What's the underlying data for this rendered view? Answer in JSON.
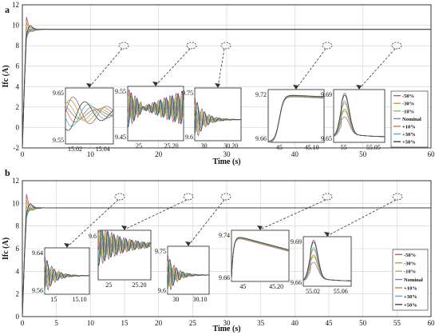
{
  "colors": {
    "-50%": "#a85a8c",
    "-30%": "#c8a030",
    "-10%": "#8fbf5a",
    "Nominal": "#8a7fb8",
    "+10%": "#d07a3a",
    "+30%": "#4ab0d0",
    "+50%": "#404040",
    "grid": "#d0d0d0",
    "dashed": "#333333"
  },
  "chart_data": [
    {
      "panel": "a",
      "type": "line",
      "xlabel": "Time (s)",
      "ylabel": "Ifc (A)",
      "xlim": [
        0,
        60
      ],
      "ylim": [
        -2,
        12
      ],
      "xticks": [
        0,
        10,
        20,
        30,
        40,
        50,
        60
      ],
      "yticks": [
        -2,
        0,
        2,
        4,
        6,
        8,
        10,
        12
      ],
      "grid": true,
      "steady_state": 9.6,
      "legend": [
        "-50%",
        "-30%",
        "-10%",
        "Nominal",
        "+10%",
        "+30%",
        "+50%"
      ],
      "legend_position": "right",
      "zoom_markers": [
        15,
        25,
        30,
        45,
        55
      ],
      "insets": [
        {
          "xticks": [
            "15.02",
            "15.04"
          ],
          "yticks": [
            "9.65",
            "9.55"
          ],
          "xr": [
            15.0,
            15.05
          ],
          "yr": [
            9.55,
            9.67
          ],
          "shape": "osc_slow"
        },
        {
          "xticks": [
            "25",
            "25.20"
          ],
          "yticks": [
            "9.55",
            "9.45"
          ],
          "xr": [
            25.0,
            25.25
          ],
          "yr": [
            9.45,
            9.58
          ],
          "shape": "osc_grow"
        },
        {
          "xticks": [
            "30",
            "30.20"
          ],
          "yticks": [
            "9.75",
            "9.6"
          ],
          "xr": [
            30.0,
            30.25
          ],
          "yr": [
            9.55,
            9.78
          ],
          "shape": "damped"
        },
        {
          "xticks": [
            "45",
            "45.10"
          ],
          "yticks": [
            "9.72",
            "9.66"
          ],
          "xr": [
            45.0,
            45.15
          ],
          "yr": [
            9.65,
            9.73
          ],
          "shape": "rise"
        },
        {
          "xticks": [
            "55",
            "55.05"
          ],
          "yticks": [
            "9.69",
            "9.65"
          ],
          "xr": [
            55.0,
            55.08
          ],
          "yr": [
            9.645,
            9.695
          ],
          "shape": "spike"
        }
      ]
    },
    {
      "panel": "b",
      "type": "line",
      "xlabel": "Time (s)",
      "ylabel": "Ifc (A)",
      "xlim": [
        0,
        60
      ],
      "ylim": [
        0,
        12
      ],
      "xticks": [
        0,
        5,
        10,
        15,
        20,
        25,
        30,
        35,
        40,
        45,
        50,
        55,
        60
      ],
      "yticks": [
        0,
        2,
        4,
        6,
        8,
        10,
        12
      ],
      "grid": true,
      "steady_state": 9.6,
      "legend": [
        "-50%",
        "-30%",
        "-10%",
        "Nominal",
        "+10%",
        "+30%",
        "+50%"
      ],
      "legend_position": "right",
      "zoom_markers": [
        15,
        25,
        30,
        45,
        55
      ],
      "insets": [
        {
          "xticks": [
            "15",
            "15.10"
          ],
          "yticks": [
            "9.64",
            "9.56"
          ],
          "xr": [
            15.0,
            15.12
          ],
          "yr": [
            9.55,
            9.65
          ],
          "shape": "damped"
        },
        {
          "xticks": [
            "25",
            "25.20"
          ],
          "yticks": [
            "9.6"
          ],
          "xr": [
            25.0,
            25.25
          ],
          "yr": [
            9.4,
            9.62
          ],
          "shape": "osc_big"
        },
        {
          "xticks": [
            "30",
            "30.10"
          ],
          "yticks": [
            "9.75",
            "9.6"
          ],
          "xr": [
            30.0,
            30.12
          ],
          "yr": [
            9.58,
            9.78
          ],
          "shape": "damped"
        },
        {
          "xticks": [
            "45",
            "45.20"
          ],
          "yticks": [
            "9.74",
            "9.66"
          ],
          "xr": [
            45.0,
            45.25
          ],
          "yr": [
            9.65,
            9.75
          ],
          "shape": "rise_decay"
        },
        {
          "xticks": [
            "55.02",
            "55.06"
          ],
          "yticks": [
            "9.69",
            "9.66"
          ],
          "xr": [
            55.0,
            55.07
          ],
          "yr": [
            9.655,
            9.695
          ],
          "shape": "spike"
        }
      ]
    }
  ]
}
